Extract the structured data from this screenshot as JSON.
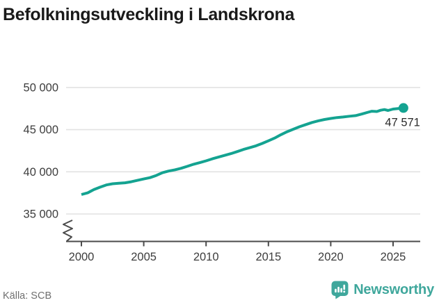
{
  "title": "Befolkningsutveckling i Landskrona",
  "footer": {
    "source": "Källa: SCB",
    "brand": "Newsworthy"
  },
  "colors": {
    "accent": "#14a391",
    "logo": "#3fa79c",
    "grid": "#e2e2e2",
    "axis": "#4a4a4a",
    "tick_text": "#3d3d3d",
    "muted": "#6f6f6f",
    "title": "#1a1a1a"
  },
  "chart_data": {
    "type": "line",
    "title": "Befolkningsutveckling i Landskrona",
    "xlabel": "",
    "ylabel": "",
    "grid": "horizontal",
    "legend": "none",
    "y_axis_break": true,
    "xlim": [
      2000,
      2026.3
    ],
    "ylim": [
      35000,
      50000
    ],
    "x_ticks": [
      2000,
      2005,
      2010,
      2015,
      2020,
      2025
    ],
    "y_ticks": [
      {
        "value": 35000,
        "label": "35 000"
      },
      {
        "value": 40000,
        "label": "40 000"
      },
      {
        "value": 45000,
        "label": "45 000"
      },
      {
        "value": 50000,
        "label": "50 000"
      }
    ],
    "series": [
      {
        "points": [
          [
            2000,
            37310
          ],
          [
            2000.5,
            37500
          ],
          [
            2001,
            37890
          ],
          [
            2001.5,
            38180
          ],
          [
            2002,
            38440
          ],
          [
            2002.5,
            38580
          ],
          [
            2003,
            38640
          ],
          [
            2003.5,
            38700
          ],
          [
            2004,
            38820
          ],
          [
            2004.5,
            38990
          ],
          [
            2005,
            39150
          ],
          [
            2005.5,
            39310
          ],
          [
            2006,
            39560
          ],
          [
            2006.5,
            39890
          ],
          [
            2007,
            40090
          ],
          [
            2007.5,
            40240
          ],
          [
            2008,
            40420
          ],
          [
            2008.5,
            40650
          ],
          [
            2009,
            40900
          ],
          [
            2009.5,
            41090
          ],
          [
            2010,
            41300
          ],
          [
            2010.5,
            41540
          ],
          [
            2011,
            41750
          ],
          [
            2011.5,
            41950
          ],
          [
            2012,
            42160
          ],
          [
            2012.5,
            42400
          ],
          [
            2013,
            42650
          ],
          [
            2013.5,
            42860
          ],
          [
            2014,
            43080
          ],
          [
            2014.5,
            43360
          ],
          [
            2015,
            43670
          ],
          [
            2015.5,
            44000
          ],
          [
            2016,
            44400
          ],
          [
            2016.5,
            44750
          ],
          [
            2017,
            45050
          ],
          [
            2017.5,
            45350
          ],
          [
            2018,
            45600
          ],
          [
            2018.5,
            45850
          ],
          [
            2019,
            46050
          ],
          [
            2019.5,
            46200
          ],
          [
            2020,
            46330
          ],
          [
            2020.5,
            46430
          ],
          [
            2021,
            46500
          ],
          [
            2021.5,
            46590
          ],
          [
            2022,
            46660
          ],
          [
            2022.5,
            46850
          ],
          [
            2023,
            47070
          ],
          [
            2023.3,
            47180
          ],
          [
            2023.7,
            47150
          ],
          [
            2024,
            47300
          ],
          [
            2024.3,
            47380
          ],
          [
            2024.6,
            47270
          ],
          [
            2025,
            47440
          ],
          [
            2025.4,
            47500
          ],
          [
            2025.83,
            47571
          ]
        ]
      }
    ],
    "end_label": {
      "text": "47 571",
      "value": 47571,
      "x": 2025.83
    }
  }
}
